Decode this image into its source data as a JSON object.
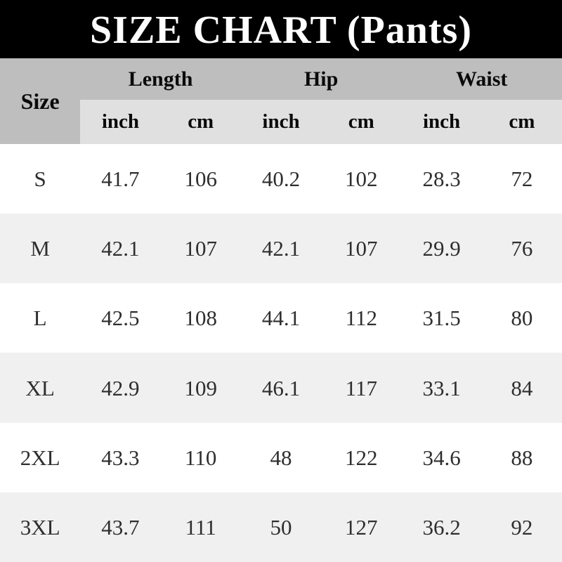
{
  "title": "SIZE CHART (Pants)",
  "colors": {
    "title_bg": "#000000",
    "title_text": "#ffffff",
    "header_bg": "#bebebe",
    "subheader_bg": "#e0e0e0",
    "row_bg": "#ffffff",
    "row_alt_bg": "#f0f0f0",
    "data_text": "#2e2e2e",
    "header_text": "#0a0a0a"
  },
  "table": {
    "size_label": "Size",
    "groups": [
      {
        "label": "Length"
      },
      {
        "label": "Hip"
      },
      {
        "label": "Waist"
      }
    ],
    "unit_headers": [
      "inch",
      "cm",
      "inch",
      "cm",
      "inch",
      "cm"
    ],
    "rows": [
      {
        "size": "S",
        "values": [
          "41.7",
          "106",
          "40.2",
          "102",
          "28.3",
          "72"
        ]
      },
      {
        "size": "M",
        "values": [
          "42.1",
          "107",
          "42.1",
          "107",
          "29.9",
          "76"
        ]
      },
      {
        "size": "L",
        "values": [
          "42.5",
          "108",
          "44.1",
          "112",
          "31.5",
          "80"
        ]
      },
      {
        "size": "XL",
        "values": [
          "42.9",
          "109",
          "46.1",
          "117",
          "33.1",
          "84"
        ]
      },
      {
        "size": "2XL",
        "values": [
          "43.3",
          "110",
          "48",
          "122",
          "34.6",
          "88"
        ]
      },
      {
        "size": "3XL",
        "values": [
          "43.7",
          "111",
          "50",
          "127",
          "36.2",
          "92"
        ]
      }
    ]
  },
  "chart_data": {
    "type": "table",
    "title": "SIZE CHART (Pants)",
    "column_groups": [
      "Length",
      "Hip",
      "Waist"
    ],
    "columns": [
      "Size",
      "Length inch",
      "Length cm",
      "Hip inch",
      "Hip cm",
      "Waist inch",
      "Waist cm"
    ],
    "rows": [
      [
        "S",
        41.7,
        106,
        40.2,
        102,
        28.3,
        72
      ],
      [
        "M",
        42.1,
        107,
        42.1,
        107,
        29.9,
        76
      ],
      [
        "L",
        42.5,
        108,
        44.1,
        112,
        31.5,
        80
      ],
      [
        "XL",
        42.9,
        109,
        46.1,
        117,
        33.1,
        84
      ],
      [
        "2XL",
        43.3,
        110,
        48,
        122,
        34.6,
        88
      ],
      [
        "3XL",
        43.7,
        111,
        50,
        127,
        36.2,
        92
      ]
    ]
  }
}
